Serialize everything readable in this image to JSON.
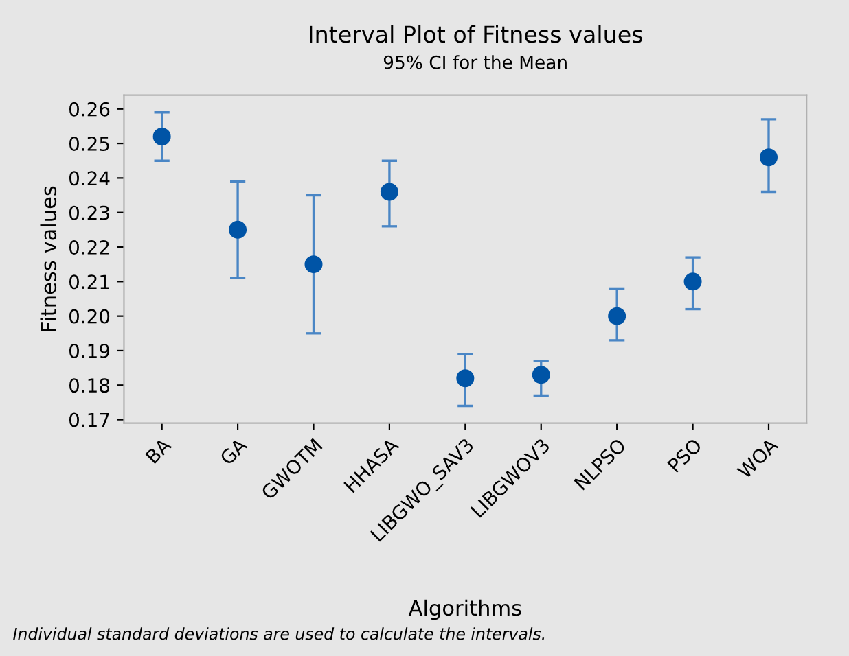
{
  "chart_data": {
    "type": "scatter",
    "title": "Interval Plot of Fitness values",
    "subtitle": "95% CI for the Mean",
    "xlabel": "Algorithms",
    "ylabel": "Fitness values",
    "annotations": [
      "Individual standard deviations are used to calculate the intervals."
    ],
    "categories": [
      "BA",
      "GA",
      "GWOTM",
      "HHASA",
      "LIBGWO_SAV3",
      "LIBGWOV3",
      "NLPSO",
      "PSO",
      "WOA"
    ],
    "series": [
      {
        "color": "#0054a6",
        "values": [
          0.252,
          0.225,
          0.215,
          0.236,
          0.182,
          0.183,
          0.2,
          0.21,
          0.246
        ],
        "errors": [
          [
            0.245,
            0.259
          ],
          [
            0.211,
            0.239
          ],
          [
            0.195,
            0.235
          ],
          [
            0.226,
            0.245
          ],
          [
            0.174,
            0.189
          ],
          [
            0.177,
            0.187
          ],
          [
            0.193,
            0.208
          ],
          [
            0.202,
            0.217
          ],
          [
            0.236,
            0.257
          ]
        ]
      }
    ],
    "ylim": [
      0.169,
      0.264
    ],
    "yticks": [
      0.17,
      0.18,
      0.19,
      {
        "value": 0.2,
        "label": "0.20"
      },
      0.21,
      0.22,
      0.23,
      0.24,
      0.25,
      0.26
    ],
    "grid": false,
    "marker": "circle"
  }
}
